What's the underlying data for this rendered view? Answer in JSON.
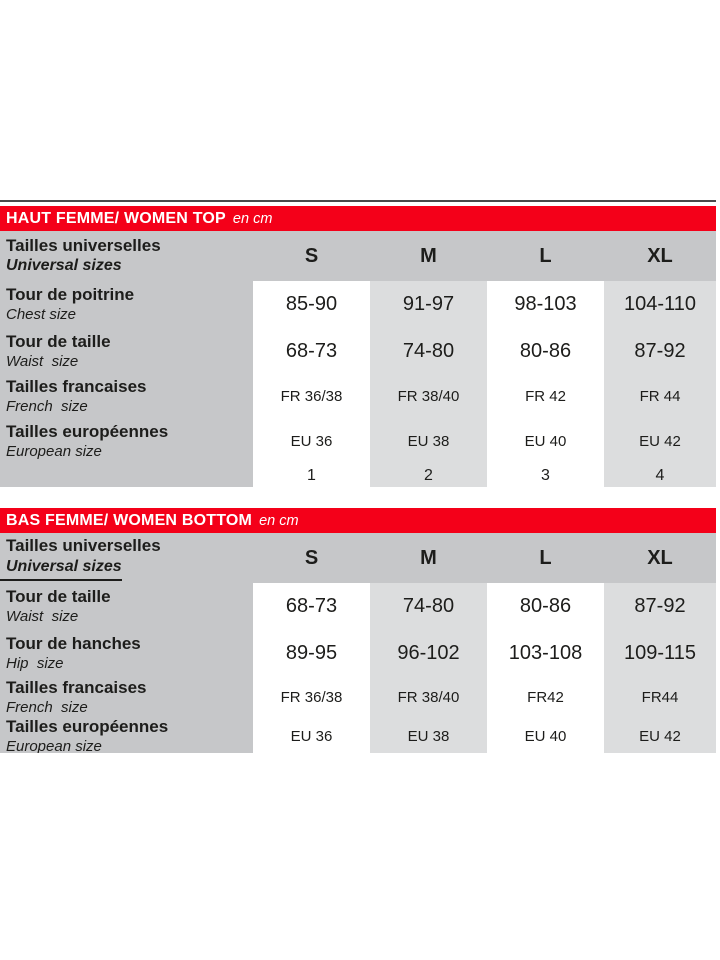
{
  "page": {
    "accent_red": "#f40019",
    "header_gray": "#c6c7c9",
    "alt_column_gray": "#dcddde",
    "text_color": "#1d1d1b"
  },
  "tables": [
    {
      "title": "HAUT FEMME/ WOMEN TOP",
      "unit": "en cm",
      "header": {
        "label_fr": "Tailles universelles",
        "label_en": "Universal sizes",
        "sizes": [
          "S",
          "M",
          "L",
          "XL"
        ]
      },
      "rows": [
        {
          "label_fr": "Tour de poitrine",
          "label_en": "Chest size",
          "values": [
            "85-90",
            "91-97",
            "98-103",
            "104-110"
          ]
        },
        {
          "label_fr": "Tour de taille",
          "label_en": "Waist  size",
          "values": [
            "68-73",
            "74-80",
            "80-86",
            "87-92"
          ]
        },
        {
          "label_fr": "Tailles francaises",
          "label_en": "French  size",
          "values": [
            "FR 36/38",
            "FR 38/40",
            "FR 42",
            "FR 44"
          ]
        },
        {
          "label_fr": "Tailles européennes",
          "label_en": "European size",
          "values": [
            "EU 36",
            "EU 38",
            "EU 40",
            "EU 42"
          ]
        },
        {
          "label_fr": "",
          "label_en": "",
          "values": [
            "1",
            "2",
            "3",
            "4"
          ]
        }
      ]
    },
    {
      "title": "BAS FEMME/ WOMEN BOTTOM",
      "unit": "en cm",
      "header": {
        "label_fr": "Tailles universelles",
        "label_en": "Universal sizes",
        "sizes": [
          "S",
          "M",
          "L",
          "XL"
        ]
      },
      "rows": [
        {
          "label_fr": "Tour de taille",
          "label_en": "Waist  size",
          "values": [
            "68-73",
            "74-80",
            "80-86",
            "87-92"
          ]
        },
        {
          "label_fr": "Tour de hanches",
          "label_en": "Hip  size",
          "values": [
            "89-95",
            "96-102",
            "103-108",
            "109-115"
          ]
        },
        {
          "label_fr": "Tailles francaises",
          "label_en": "French  size",
          "values": [
            "FR 36/38",
            "FR 38/40",
            "FR42",
            "FR44"
          ]
        },
        {
          "label_fr": "Tailles européennes",
          "label_en": "European size",
          "values": [
            "EU 36",
            "EU 38",
            "EU 40",
            "EU 42"
          ]
        }
      ]
    }
  ]
}
